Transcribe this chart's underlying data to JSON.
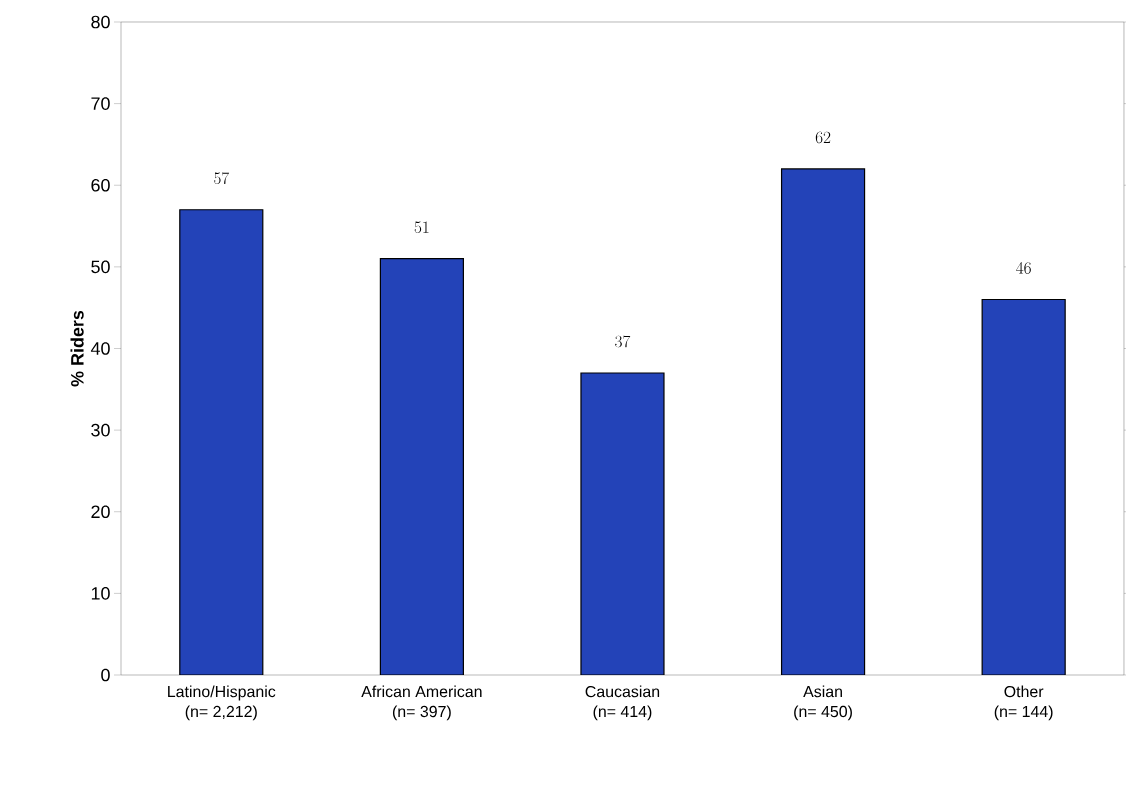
{
  "chart_data": {
    "type": "bar",
    "ylabel": "% Riders",
    "categories": [
      "Latino/Hispanic\n(n= 2,212)",
      "African American\n(n= 397)",
      "Caucasian\n(n= 414)",
      "Asian\n(n= 450)",
      "Other\n(n= 144)"
    ],
    "values": [
      57,
      51,
      37,
      62,
      46
    ],
    "color": "#2343b8",
    "data_labels": true,
    "ylim": [
      0,
      80
    ],
    "yticks": [
      0,
      10,
      20,
      30,
      40,
      50,
      60,
      70,
      80
    ],
    "grid": false
  }
}
